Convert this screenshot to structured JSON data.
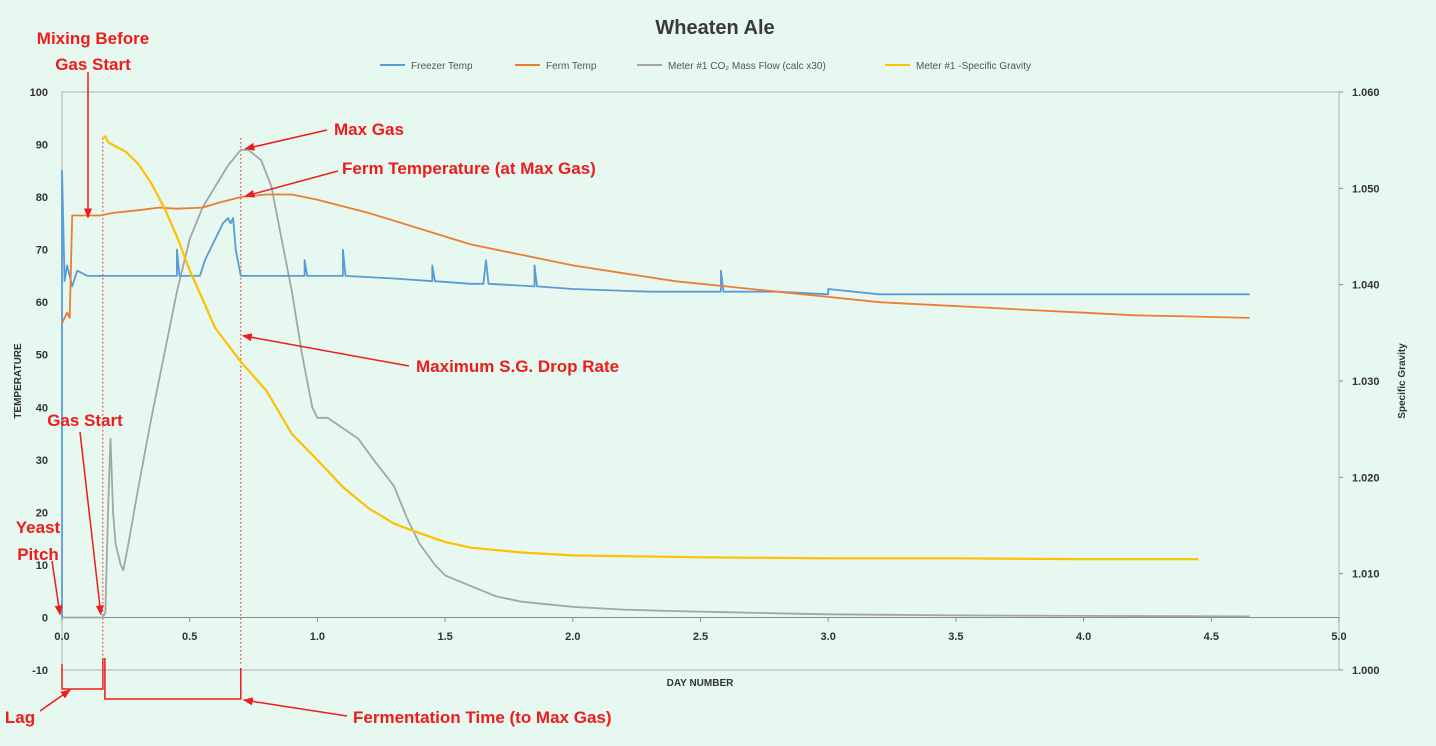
{
  "chart_data": {
    "type": "line",
    "title": "Wheaten Ale",
    "xlabel": "DAY NUMBER",
    "ylabel": "TEMPERATURE",
    "y2label": "Specific Gravity",
    "xlim": [
      0,
      5
    ],
    "ylim": [
      -10,
      100
    ],
    "y2lim": [
      1.0,
      1.06
    ],
    "x_ticks": [
      "0.0",
      "0.5",
      "1.0",
      "1.5",
      "2.0",
      "2.5",
      "3.0",
      "3.5",
      "4.0",
      "4.5",
      "5.0"
    ],
    "y_ticks": [
      "-10",
      "0",
      "10",
      "20",
      "30",
      "40",
      "50",
      "60",
      "70",
      "80",
      "90",
      "100"
    ],
    "y2_ticks": [
      "1.000",
      "1.010",
      "1.020",
      "1.030",
      "1.040",
      "1.050",
      "1.060"
    ],
    "grid": false,
    "legend_position": "top",
    "series": [
      {
        "name": "Freezer Temp",
        "color": "#5b9bd5",
        "axis": "left",
        "points": [
          [
            0.0,
            0
          ],
          [
            0.0,
            85
          ],
          [
            0.01,
            64
          ],
          [
            0.02,
            67
          ],
          [
            0.04,
            63
          ],
          [
            0.06,
            66
          ],
          [
            0.1,
            65
          ],
          [
            0.2,
            65
          ],
          [
            0.3,
            65
          ],
          [
            0.45,
            65
          ],
          [
            0.45,
            70
          ],
          [
            0.46,
            65
          ],
          [
            0.5,
            65
          ],
          [
            0.54,
            65
          ],
          [
            0.56,
            68
          ],
          [
            0.6,
            72
          ],
          [
            0.63,
            75
          ],
          [
            0.65,
            76
          ],
          [
            0.66,
            75
          ],
          [
            0.67,
            76
          ],
          [
            0.68,
            70
          ],
          [
            0.7,
            65
          ],
          [
            0.8,
            65
          ],
          [
            0.95,
            65
          ],
          [
            0.95,
            68
          ],
          [
            0.96,
            65
          ],
          [
            1.1,
            65
          ],
          [
            1.1,
            70
          ],
          [
            1.11,
            65
          ],
          [
            1.3,
            64.5
          ],
          [
            1.45,
            64
          ],
          [
            1.45,
            67
          ],
          [
            1.46,
            64
          ],
          [
            1.6,
            63.5
          ],
          [
            1.65,
            63.5
          ],
          [
            1.66,
            68
          ],
          [
            1.67,
            63.5
          ],
          [
            1.85,
            63
          ],
          [
            1.85,
            67
          ],
          [
            1.86,
            63
          ],
          [
            2.0,
            62.5
          ],
          [
            2.3,
            62
          ],
          [
            2.58,
            62
          ],
          [
            2.58,
            66
          ],
          [
            2.59,
            62
          ],
          [
            2.8,
            62
          ],
          [
            3.0,
            61.5
          ],
          [
            3.0,
            62.5
          ],
          [
            3.2,
            61.5
          ],
          [
            3.5,
            61.5
          ],
          [
            4.0,
            61.5
          ],
          [
            4.5,
            61.5
          ],
          [
            4.65,
            61.5
          ]
        ]
      },
      {
        "name": "Ferm Temp",
        "color": "#ed7d31",
        "axis": "left",
        "points": [
          [
            0.0,
            56
          ],
          [
            0.02,
            58
          ],
          [
            0.03,
            57
          ],
          [
            0.04,
            76.5
          ],
          [
            0.15,
            76.5
          ],
          [
            0.2,
            77
          ],
          [
            0.3,
            77.5
          ],
          [
            0.38,
            78
          ],
          [
            0.45,
            77.8
          ],
          [
            0.55,
            78
          ],
          [
            0.62,
            79
          ],
          [
            0.7,
            80
          ],
          [
            0.8,
            80.5
          ],
          [
            0.9,
            80.5
          ],
          [
            1.0,
            79.5
          ],
          [
            1.2,
            77
          ],
          [
            1.4,
            74
          ],
          [
            1.6,
            71
          ],
          [
            1.8,
            69
          ],
          [
            2.0,
            67
          ],
          [
            2.2,
            65.5
          ],
          [
            2.4,
            64
          ],
          [
            2.6,
            63
          ],
          [
            2.8,
            62
          ],
          [
            3.0,
            61
          ],
          [
            3.2,
            60
          ],
          [
            3.4,
            59.5
          ],
          [
            3.6,
            59
          ],
          [
            3.8,
            58.5
          ],
          [
            4.0,
            58
          ],
          [
            4.2,
            57.5
          ],
          [
            4.4,
            57.3
          ],
          [
            4.65,
            57
          ]
        ]
      },
      {
        "name": "Meter #1 CO₂ Mass Flow (calc x30)",
        "color": "#a5a5a5",
        "axis": "left",
        "points": [
          [
            0.0,
            0
          ],
          [
            0.16,
            0
          ],
          [
            0.17,
            1
          ],
          [
            0.18,
            20
          ],
          [
            0.19,
            34
          ],
          [
            0.2,
            20
          ],
          [
            0.21,
            14
          ],
          [
            0.23,
            10
          ],
          [
            0.24,
            9
          ],
          [
            0.26,
            14
          ],
          [
            0.3,
            25
          ],
          [
            0.35,
            38
          ],
          [
            0.4,
            50
          ],
          [
            0.45,
            62
          ],
          [
            0.5,
            72
          ],
          [
            0.55,
            78
          ],
          [
            0.6,
            82
          ],
          [
            0.65,
            86
          ],
          [
            0.7,
            89
          ],
          [
            0.73,
            89
          ],
          [
            0.78,
            87
          ],
          [
            0.82,
            82
          ],
          [
            0.86,
            72
          ],
          [
            0.9,
            62
          ],
          [
            0.94,
            50
          ],
          [
            0.98,
            40
          ],
          [
            1.0,
            38
          ],
          [
            1.04,
            38
          ],
          [
            1.1,
            36
          ],
          [
            1.16,
            34
          ],
          [
            1.22,
            30
          ],
          [
            1.3,
            25
          ],
          [
            1.35,
            19
          ],
          [
            1.4,
            14
          ],
          [
            1.46,
            10
          ],
          [
            1.5,
            8
          ],
          [
            1.6,
            6
          ],
          [
            1.7,
            4
          ],
          [
            1.8,
            3
          ],
          [
            1.9,
            2.5
          ],
          [
            2.0,
            2
          ],
          [
            2.2,
            1.5
          ],
          [
            2.4,
            1.2
          ],
          [
            2.6,
            1
          ],
          [
            2.8,
            0.8
          ],
          [
            3.0,
            0.6
          ],
          [
            3.5,
            0.4
          ],
          [
            4.0,
            0.3
          ],
          [
            4.65,
            0.2
          ]
        ]
      },
      {
        "name": "Meter #1 -Specific Gravity",
        "color": "#ffc000",
        "axis": "right",
        "points": [
          [
            0.16,
            1.0552
          ],
          [
            0.17,
            1.0554
          ],
          [
            0.18,
            1.0548
          ],
          [
            0.2,
            1.0545
          ],
          [
            0.25,
            1.0538
          ],
          [
            0.3,
            1.0525
          ],
          [
            0.35,
            1.0505
          ],
          [
            0.4,
            1.048
          ],
          [
            0.45,
            1.045
          ],
          [
            0.5,
            1.0415
          ],
          [
            0.55,
            1.0385
          ],
          [
            0.6,
            1.0355
          ],
          [
            0.7,
            1.032
          ],
          [
            0.8,
            1.029
          ],
          [
            0.9,
            1.0245
          ],
          [
            1.0,
            1.0218
          ],
          [
            1.1,
            1.019
          ],
          [
            1.2,
            1.0168
          ],
          [
            1.3,
            1.0152
          ],
          [
            1.4,
            1.0142
          ],
          [
            1.5,
            1.0133
          ],
          [
            1.6,
            1.0127
          ],
          [
            1.8,
            1.0122
          ],
          [
            2.0,
            1.0119
          ],
          [
            2.5,
            1.0117
          ],
          [
            3.0,
            1.0116
          ],
          [
            3.5,
            1.0116
          ],
          [
            4.0,
            1.0115
          ],
          [
            4.45,
            1.0115
          ]
        ]
      }
    ],
    "vlines_x": [
      0.16,
      0.7
    ],
    "annotations": [
      {
        "id": "mixing",
        "lines": [
          "Mixing Before",
          "Gas Start"
        ],
        "target_x": 0.1,
        "target_y": 76.5
      },
      {
        "id": "max-gas",
        "lines": [
          "Max Gas"
        ],
        "target_x": 0.71,
        "target_y": 89
      },
      {
        "id": "ferm-temp",
        "lines": [
          "Ferm Temperature (at Max Gas)"
        ],
        "target_x": 0.71,
        "target_y": 80
      },
      {
        "id": "max-sg",
        "lines": [
          "Maximum S.G. Drop Rate"
        ],
        "target_x": 0.7,
        "target_y": 54
      },
      {
        "id": "gas-start",
        "lines": [
          "Gas Start"
        ],
        "target_x": 0.16,
        "target_y": 0
      },
      {
        "id": "yeast-pitch",
        "lines": [
          "Yeast",
          "Pitch"
        ],
        "target_x": 0.0,
        "target_y": 0
      },
      {
        "id": "lag",
        "lines": [
          "Lag"
        ]
      },
      {
        "id": "ferm-time",
        "lines": [
          "Fermentation Time (to Max Gas)"
        ]
      }
    ]
  }
}
